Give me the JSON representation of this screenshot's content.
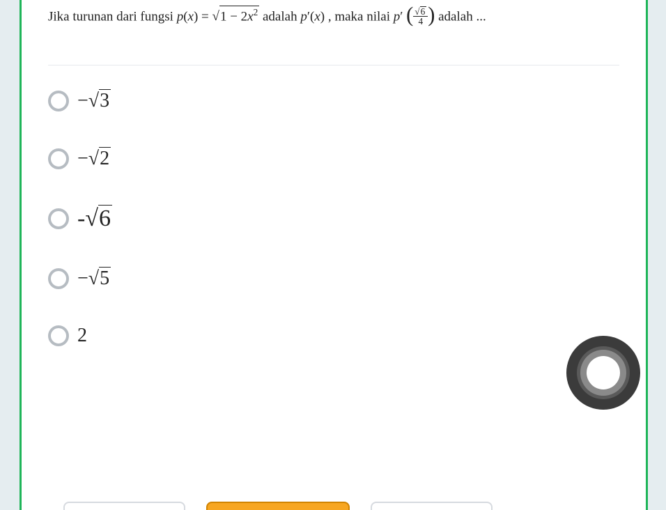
{
  "question": {
    "prefix_text": "Jika turunan dari fungsi ",
    "func_lhs_html": "<span class='math'>p</span>(<span class='math'>x</span>) = ",
    "func_rhs_sqrt_body_html": "1 − 2<span class='math'>x</span><sup>2</sup>",
    "mid_text": " adalah ",
    "deriv_html": "<span class='math'>p</span>′(<span class='math'>x</span>)",
    "value_prefix": ", maka nilai ",
    "deriv2_html": "<span class='math'>p</span>′ ",
    "frac_num_sqrt_body": "6",
    "frac_den": "4",
    "suffix_text": " adalah ..."
  },
  "options": [
    {
      "prefix": "−",
      "radicand": "3",
      "big": false
    },
    {
      "prefix": "−",
      "radicand": "2",
      "big": false
    },
    {
      "prefix": "-",
      "radicand": "6",
      "big": true
    },
    {
      "prefix": "−",
      "radicand": "5",
      "big": false
    },
    {
      "plain": "2"
    }
  ],
  "colors": {
    "page_bg": "#e5edf0",
    "card_bg": "#ffffff",
    "card_border": "#1fb559",
    "text": "#222222",
    "divider": "#e6e9ec",
    "radio_border": "#b6bcc2",
    "btn_ghost_border": "#d6dadf",
    "btn_primary_bg": "#f7a621",
    "btn_primary_border": "#d08300",
    "assist_outer": "#3b3b3b",
    "assist_mid": "#8a8a8a",
    "assist_inner": "#ffffff"
  }
}
